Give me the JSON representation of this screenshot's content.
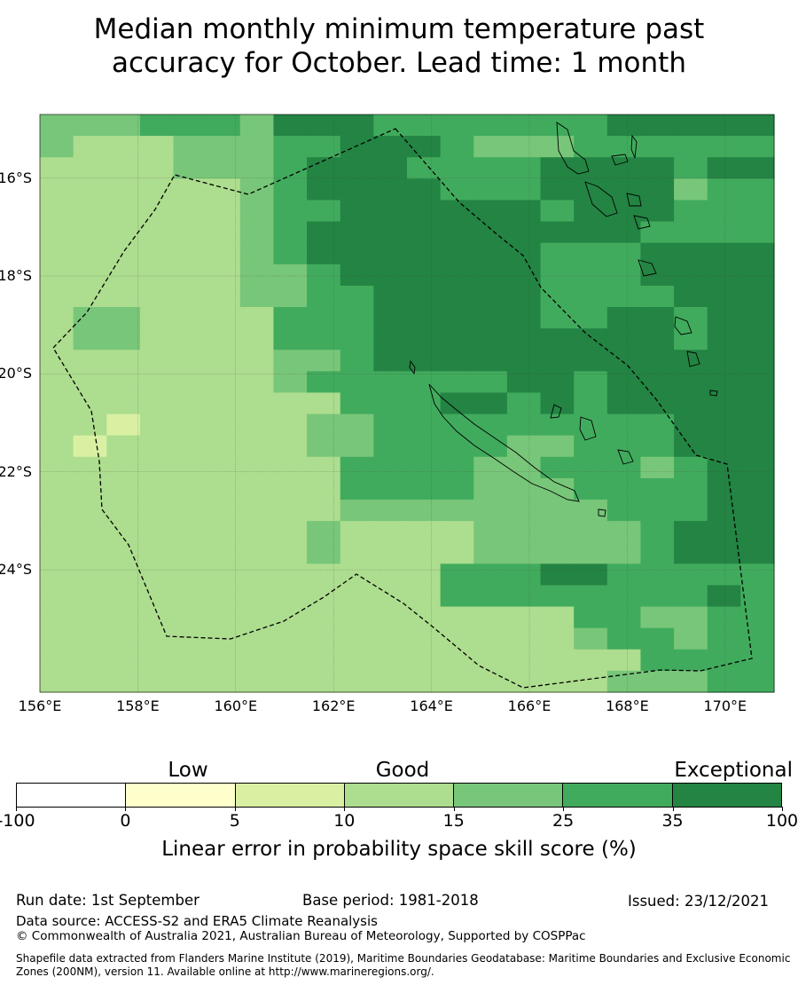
{
  "title_line1": "Median monthly minimum temperature past",
  "title_line2": "accuracy for October. Lead time: 1 month",
  "map": {
    "lon_range": [
      156.0,
      171.0
    ],
    "lat_range": [
      -26.5,
      -14.7
    ],
    "x_ticks": [
      "156°E",
      "158°E",
      "160°E",
      "162°E",
      "164°E",
      "166°E",
      "168°E",
      "170°E"
    ],
    "y_ticks": [
      "16°S",
      "18°S",
      "20°S",
      "22°S",
      "24°S"
    ],
    "gridlines": true,
    "boundary_style": "dashed",
    "grid_rows_top_to_bottom": [
      "4445554666555555566666",
      "4333444556665444555555",
      "3333444566655556666566",
      "3333334566665556666455",
      "3333334556666665666555",
      "3333334566666666665555",
      "3333334566666665556666",
      "3333334456666665556666",
      "3333334455666665555666",
      "3443333555666665566566",
      "3443333555666666666566",
      "3333333445666666666666",
      "3333333455555566566666",
      "3333333335556656566666",
      "3323333344555555555666",
      "3233333344555544555666",
      "3333333335555445554566",
      "3333333335555444555566",
      "3333333334444444455566",
      "3333333343333444445666",
      "3333333343333444445666",
      "3333333333335556655555",
      "3333333333335555555565",
      "3333333333333333554455",
      "3333333333333333455455",
      "3333333333333333335555",
      "3333333333333333344455"
    ],
    "category_colors": {
      "1": "#ffffcc",
      "2": "#d9f0a3",
      "3": "#addd8e",
      "4": "#78c679",
      "5": "#41ab5d",
      "6": "#238443"
    }
  },
  "colorbar": {
    "categories": [
      "Low",
      "Good",
      "Exceptional"
    ],
    "ticks": [
      "-100",
      "0",
      "5",
      "10",
      "15",
      "25",
      "35",
      "100"
    ],
    "colors": [
      "#ffffff",
      "#ffffcc",
      "#d9f0a3",
      "#addd8e",
      "#78c679",
      "#41ab5d",
      "#238443"
    ],
    "label": "Linear error in probability space skill score (%)"
  },
  "footer": {
    "run_date": "Run date: 1st September",
    "base_period": "Base period: 1981-2018",
    "issued": "Issued: 23/12/2021",
    "data_source": "Data source: ACCESS-S2 and ERA5 Climate Reanalysis",
    "copyright": "© Commonwealth of Australia 2021, Australian Bureau of Meteorology, Supported by COSPPac",
    "shapefile": "Shapefile data extracted from Flanders Marine Institute (2019), Maritime Boundaries Geodatabase: Maritime Boundaries and Exclusive Economic Zones (200NM), version 11. Available online at http://www.marineregions.org/."
  }
}
